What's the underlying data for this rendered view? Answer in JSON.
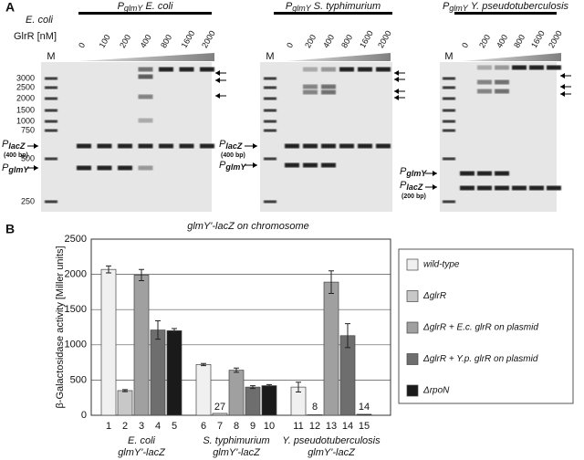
{
  "panel_a": {
    "label": "A",
    "conc_label": [
      "E. coli",
      "GlrR [nM]"
    ],
    "ladder": [
      3000,
      2500,
      2000,
      1500,
      1000,
      750,
      500,
      250
    ],
    "gels": [
      {
        "promoter": "P",
        "promoter_sub": "glmY",
        "organism": "E. coli",
        "marker": "M",
        "concentrations": [
          0,
          100,
          200,
          400,
          800,
          1600,
          2000
        ],
        "labels": [
          {
            "main": "P",
            "sub": "lacZ",
            "note": "(400 bp)"
          },
          {
            "main": "P",
            "sub": "glmY"
          }
        ]
      },
      {
        "promoter": "P",
        "promoter_sub": "glmY",
        "organism": "S. typhimurium",
        "marker": "M",
        "concentrations": [
          0,
          200,
          400,
          800,
          1600,
          2000
        ],
        "labels": [
          {
            "main": "P",
            "sub": "lacZ",
            "note": "(400 bp)"
          },
          {
            "main": "P",
            "sub": "glmY"
          }
        ]
      },
      {
        "promoter": "P",
        "promoter_sub": "glmY",
        "organism": "Y. pseudotuberculosis",
        "marker": "M",
        "concentrations": [
          0,
          200,
          400,
          800,
          1600,
          2000
        ],
        "labels": [
          {
            "main": "P",
            "sub": "glmY"
          },
          {
            "main": "P",
            "sub": "lacZ",
            "note": "(200 bp)"
          }
        ]
      }
    ]
  },
  "chart_data": {
    "type": "bar",
    "panel_label": "B",
    "title": "glmY'-lacZ on chromosome",
    "y_label": "β-Galactosidase activity [Miller units]",
    "categories": [
      [
        "E. coli",
        "glmY'-lacZ"
      ],
      [
        "S. typhimurium",
        "glmY'-lacZ"
      ],
      [
        "Y. pseudotuberculosis",
        "glmY'-lacZ"
      ]
    ],
    "bar_numbers": [
      1,
      2,
      3,
      4,
      5,
      6,
      7,
      8,
      9,
      10,
      11,
      12,
      13,
      14,
      15
    ],
    "ylim": [
      0,
      2500
    ],
    "yticks": [
      0,
      500,
      1000,
      1500,
      2000,
      2500
    ],
    "grid": true,
    "legend": "right",
    "series": [
      {
        "name": "wild-type",
        "color": "#f0f0f0",
        "values": [
          2070,
          720,
          400
        ],
        "errors": [
          50,
          15,
          70
        ]
      },
      {
        "name": "ΔglrR",
        "color": "#c8c8c8",
        "values": [
          350,
          27,
          8
        ],
        "errors": [
          15,
          null,
          null
        ],
        "value_labels": [
          null,
          "27",
          "8"
        ]
      },
      {
        "name": "ΔglrR + E.c. glrR on plasmid",
        "color": "#a0a0a0",
        "values": [
          1990,
          640,
          1890
        ],
        "errors": [
          80,
          30,
          160
        ]
      },
      {
        "name": "ΔglrR + Y.p. glrR on plasmid",
        "color": "#6e6e6e",
        "values": [
          1210,
          400,
          1130
        ],
        "errors": [
          130,
          20,
          170
        ]
      },
      {
        "name": "ΔrpoN",
        "color": "#1a1a1a",
        "values": [
          1200,
          420,
          14
        ],
        "errors": [
          30,
          15,
          null
        ],
        "value_labels": [
          null,
          null,
          "14"
        ]
      }
    ]
  }
}
